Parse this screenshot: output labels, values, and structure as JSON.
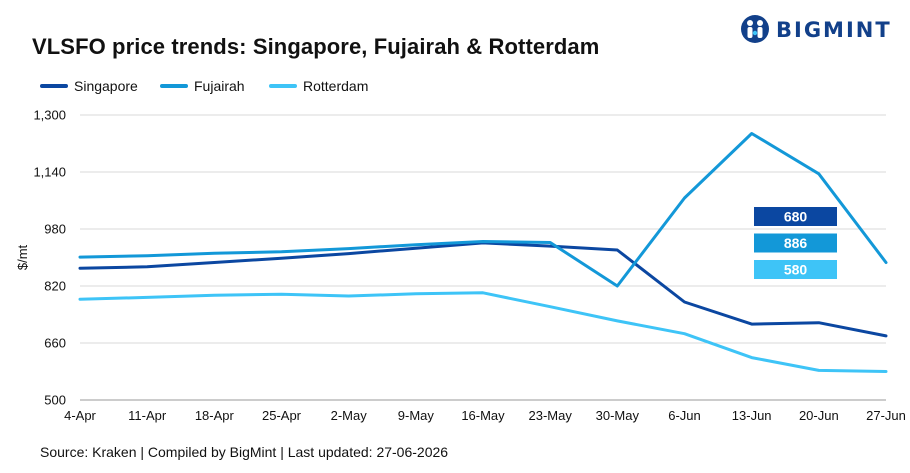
{
  "logo": {
    "text": "BIGMINT"
  },
  "source": "Source: Kraken | Compiled by BigMint | Last updated: 27-06-2026",
  "chart_data": {
    "type": "line",
    "title": "VLSFO price trends: Singapore, Fujairah & Rotterdam",
    "xlabel": "",
    "ylabel": "$/mt",
    "ylim": [
      500,
      1300
    ],
    "yticks": [
      500,
      660,
      820,
      980,
      1140,
      1300
    ],
    "ytick_labels": [
      "500",
      "660",
      "820",
      "980",
      "1,140",
      "1,300"
    ],
    "grid": true,
    "legend_position": "top-left",
    "categories": [
      "4-Apr",
      "11-Apr",
      "18-Apr",
      "25-Apr",
      "2-May",
      "9-May",
      "16-May",
      "23-May",
      "30-May",
      "6-Jun",
      "13-Jun",
      "20-Jun",
      "27-Jun"
    ],
    "series": [
      {
        "name": "Singapore",
        "color": "#0b47a1",
        "values": [
          870,
          874,
          886,
          898,
          911,
          926,
          941,
          932,
          921,
          775,
          713,
          717,
          680
        ]
      },
      {
        "name": "Fujairah",
        "color": "#1398d8",
        "values": [
          901,
          905,
          912,
          916,
          925,
          936,
          945,
          942,
          820,
          1067,
          1248,
          1135,
          886
        ]
      },
      {
        "name": "Rotterdam",
        "color": "#3ec4f7",
        "values": [
          783,
          788,
          794,
          797,
          792,
          798,
          801,
          762,
          722,
          686,
          619,
          583,
          580
        ]
      }
    ],
    "annotations": [
      {
        "series": "Singapore",
        "text": "680",
        "color": "#0b47a1"
      },
      {
        "series": "Fujairah",
        "text": "886",
        "color": "#1398d8"
      },
      {
        "series": "Rotterdam",
        "text": "580",
        "color": "#3ec4f7"
      }
    ]
  }
}
